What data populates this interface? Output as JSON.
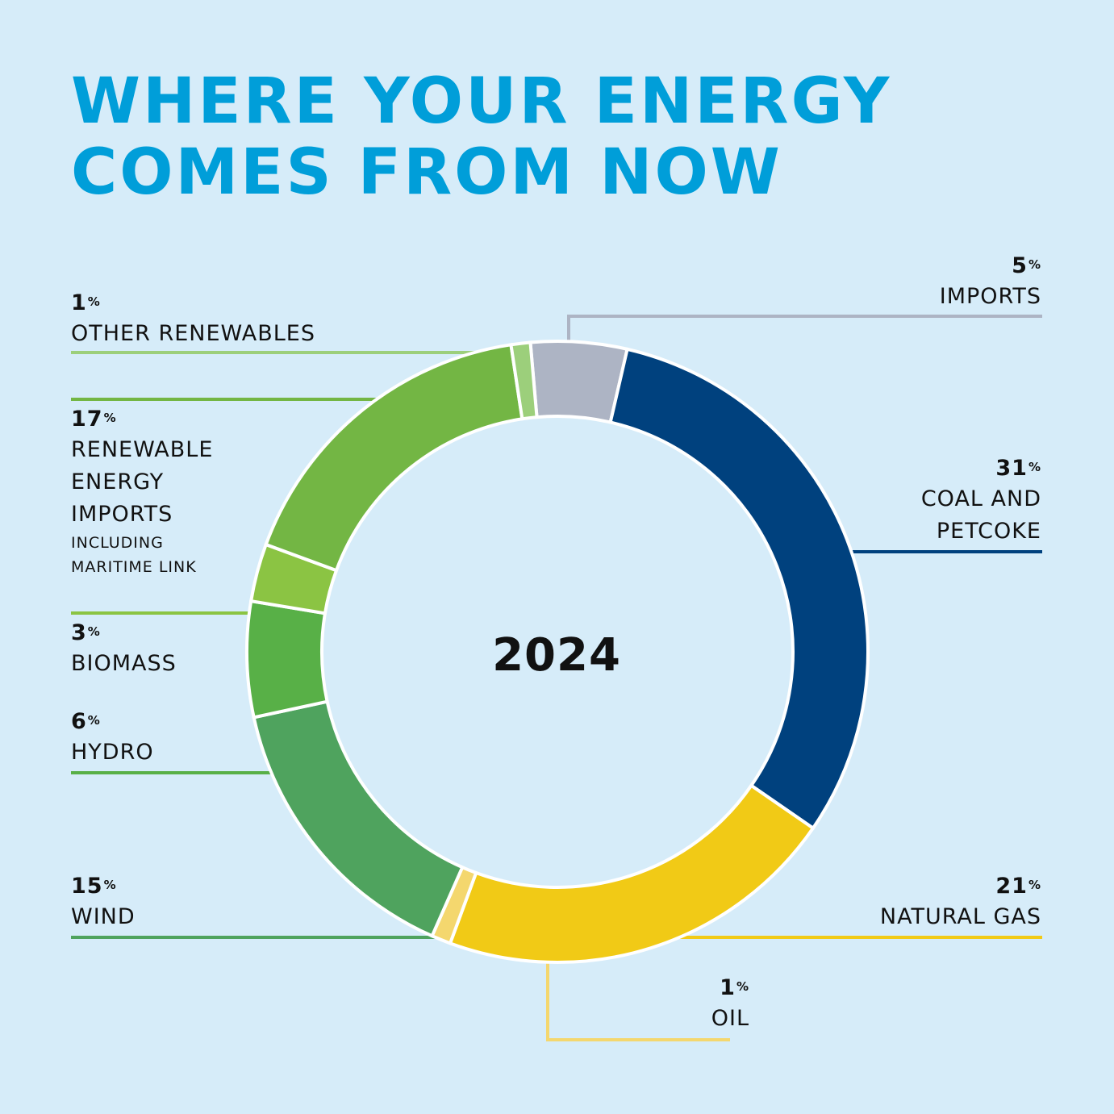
{
  "title_lines": [
    "WHERE YOUR ENERGY",
    "COMES FROM NOW"
  ],
  "center_label": "2024",
  "chart_data": {
    "type": "pie",
    "donut": true,
    "title": "WHERE YOUR ENERGY COMES FROM NOW",
    "center_text": "2024",
    "slices": [
      {
        "key": "imports",
        "label": "IMPORTS",
        "value": 5,
        "color": "#adb4c4"
      },
      {
        "key": "coal",
        "label": "COAL AND PETCOKE",
        "value": 31,
        "color": "#00417e"
      },
      {
        "key": "gas",
        "label": "NATURAL GAS",
        "value": 21,
        "color": "#f1ca16"
      },
      {
        "key": "oil",
        "label": "OIL",
        "value": 1,
        "color": "#f4d76e"
      },
      {
        "key": "wind",
        "label": "WIND",
        "value": 15,
        "color": "#4fa35e"
      },
      {
        "key": "hydro",
        "label": "HYDRO",
        "value": 6,
        "color": "#58b047"
      },
      {
        "key": "biomass",
        "label": "BIOMASS",
        "value": 3,
        "color": "#8bc443"
      },
      {
        "key": "renewable_imports",
        "label": "RENEWABLE ENERGY IMPORTS",
        "sublabel": "INCLUDING MARITIME LINK",
        "value": 17,
        "color": "#73b644"
      },
      {
        "key": "other_renewables",
        "label": "OTHER RENEWABLES",
        "value": 1,
        "color": "#9ccf7b"
      }
    ]
  },
  "labels": {
    "imports": {
      "pct": "5",
      "sym": "%",
      "lines": [
        "IMPORTS"
      ]
    },
    "coal": {
      "pct": "31",
      "sym": "%",
      "lines": [
        "COAL AND",
        "PETCOKE"
      ]
    },
    "gas": {
      "pct": "21",
      "sym": "%",
      "lines": [
        "NATURAL GAS"
      ]
    },
    "oil": {
      "pct": "1",
      "sym": "%",
      "lines": [
        "OIL"
      ]
    },
    "wind": {
      "pct": "15",
      "sym": "%",
      "lines": [
        "WIND"
      ]
    },
    "hydro": {
      "pct": "6",
      "sym": "%",
      "lines": [
        "HYDRO"
      ]
    },
    "biomass": {
      "pct": "3",
      "sym": "%",
      "lines": [
        "BIOMASS"
      ]
    },
    "renewable_imports": {
      "pct": "17",
      "sym": "%",
      "lines": [
        "RENEWABLE",
        "ENERGY",
        "IMPORTS"
      ],
      "sub": [
        "INCLUDING",
        "MARITIME LINK"
      ]
    },
    "other_renewables": {
      "pct": "1",
      "sym": "%",
      "lines": [
        "OTHER RENEWABLES"
      ]
    }
  }
}
